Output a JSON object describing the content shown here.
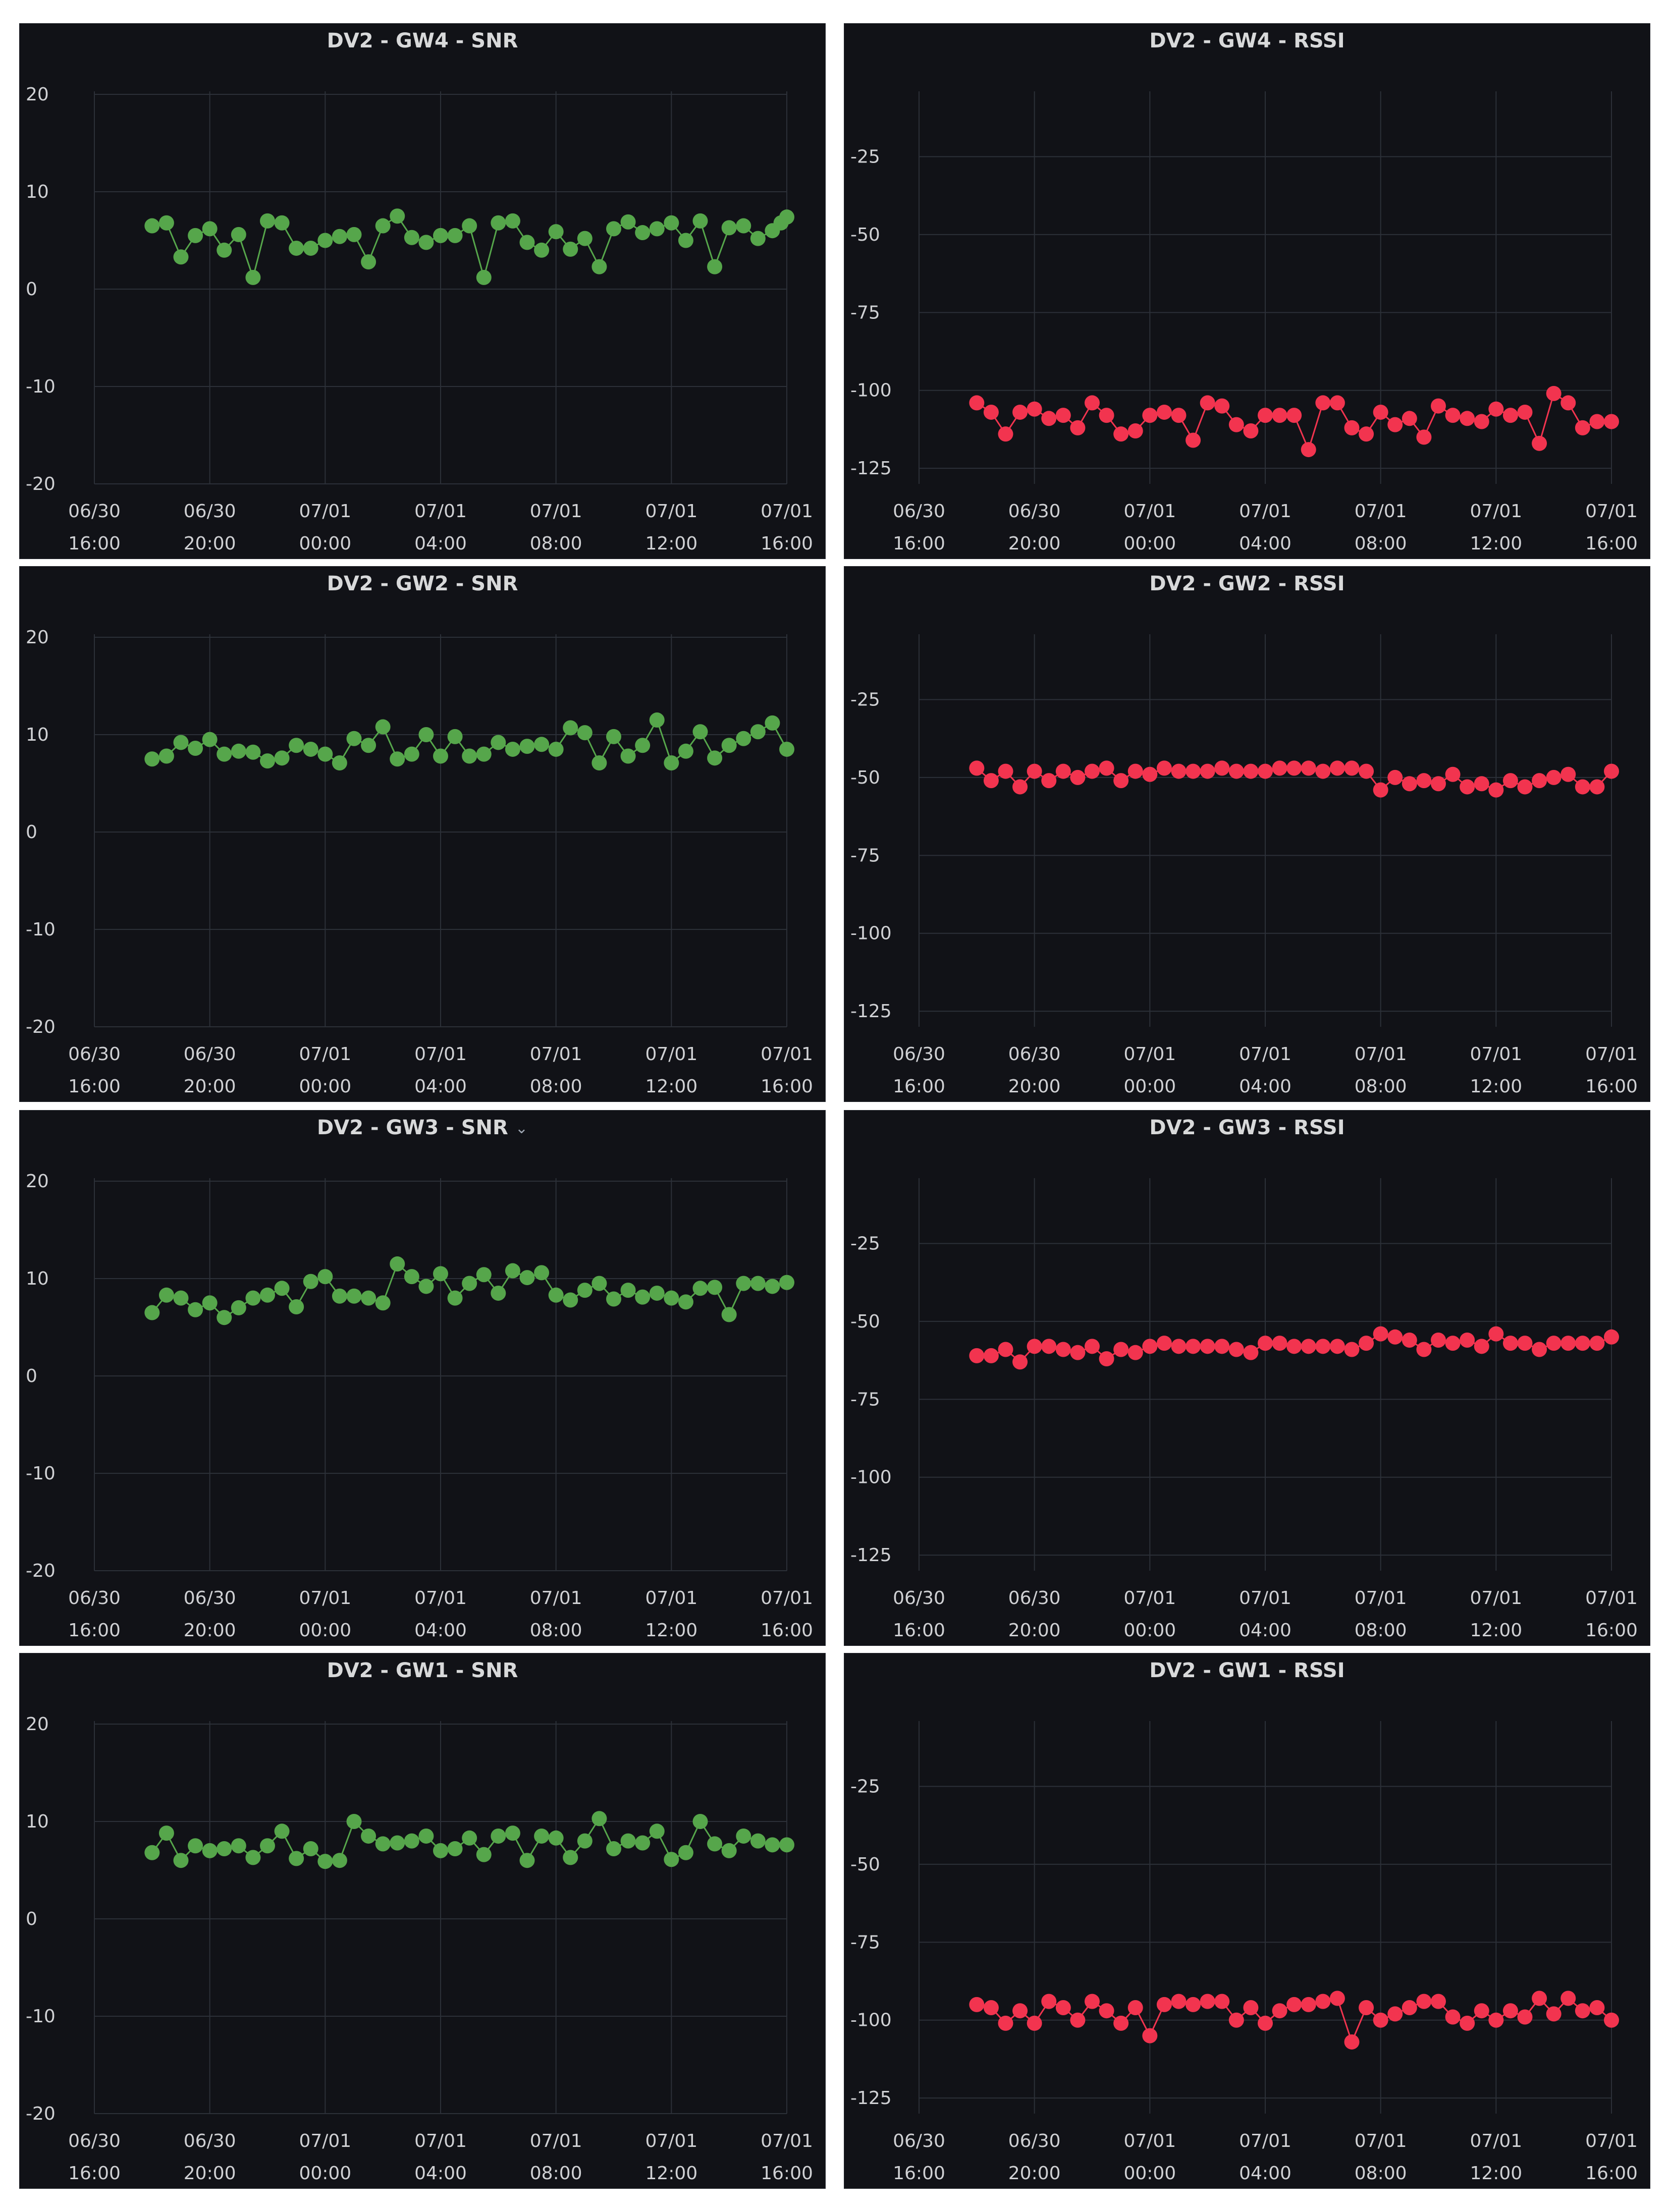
{
  "dashboard": {
    "panels": [
      {
        "title": "DV2 - GW4 - SNR",
        "has_menu_caret": false
      },
      {
        "title": "DV2 - GW4 - RSSI",
        "has_menu_caret": false
      },
      {
        "title": "DV2 - GW2 - SNR",
        "has_menu_caret": false
      },
      {
        "title": "DV2 - GW2 - RSSI",
        "has_menu_caret": false
      },
      {
        "title": "DV2 - GW3 - SNR",
        "has_menu_caret": true
      },
      {
        "title": "DV2 - GW3 - RSSI",
        "has_menu_caret": false
      },
      {
        "title": "DV2 - GW1 - SNR",
        "has_menu_caret": false
      },
      {
        "title": "DV2 - GW1 - RSSI",
        "has_menu_caret": false
      }
    ],
    "menu_caret_icon": "chevron-down-icon",
    "colors": {
      "snr": "#56a64b",
      "rssi": "#f2344f",
      "panel_bg": "#111217",
      "grid": "#2c3038",
      "text": "#d8d9da"
    }
  },
  "chart_data": [
    {
      "type": "line",
      "title": "DV2 - GW4 - SNR",
      "color": "#56a64b",
      "xlim": [
        0,
        24
      ],
      "ylim": [
        -20,
        20
      ],
      "yticks": [
        "20",
        "10",
        "0",
        "-10",
        "-20"
      ],
      "xticks": [
        {
          "d": "06/30",
          "t": "16:00"
        },
        {
          "d": "06/30",
          "t": "20:00"
        },
        {
          "d": "07/01",
          "t": "00:00"
        },
        {
          "d": "07/01",
          "t": "04:00"
        },
        {
          "d": "07/01",
          "t": "08:00"
        },
        {
          "d": "07/01",
          "t": "12:00"
        },
        {
          "d": "07/01",
          "t": "16:00"
        }
      ],
      "x": [
        2.0,
        2.5,
        3.0,
        3.5,
        4.0,
        4.5,
        5.0,
        5.5,
        6.0,
        6.5,
        7.0,
        7.5,
        8.0,
        8.5,
        9.0,
        9.5,
        10.0,
        10.5,
        11.0,
        11.5,
        12.0,
        12.5,
        13.0,
        13.5,
        14.0,
        14.5,
        15.0,
        15.5,
        16.0,
        16.5,
        17.0,
        17.5,
        18.0,
        18.5,
        19.0,
        19.5,
        20.0,
        20.5,
        21.0,
        21.5,
        22.0,
        22.5,
        23.0,
        23.5,
        23.8,
        24.0
      ],
      "y": [
        6.5,
        6.8,
        3.3,
        5.5,
        6.2,
        4.0,
        5.6,
        1.2,
        7.0,
        6.8,
        4.2,
        4.2,
        5.0,
        5.4,
        5.6,
        2.8,
        6.5,
        7.5,
        5.3,
        4.8,
        5.5,
        5.5,
        6.5,
        1.2,
        6.8,
        7.0,
        4.8,
        4.0,
        5.9,
        4.1,
        5.2,
        2.3,
        6.2,
        6.9,
        5.8,
        6.2,
        6.8,
        5.0,
        7.0,
        2.3,
        6.3,
        6.5,
        5.2,
        6.0,
        6.8,
        7.4
      ]
    },
    {
      "type": "line",
      "title": "DV2 - GW4 - RSSI",
      "color": "#f2344f",
      "xlim": [
        0,
        24
      ],
      "ylim": [
        -130,
        -5
      ],
      "yticks": [
        "-25",
        "-50",
        "-75",
        "-100",
        "-125"
      ],
      "xticks": [
        {
          "d": "06/30",
          "t": "16:00"
        },
        {
          "d": "06/30",
          "t": "20:00"
        },
        {
          "d": "07/01",
          "t": "00:00"
        },
        {
          "d": "07/01",
          "t": "04:00"
        },
        {
          "d": "07/01",
          "t": "08:00"
        },
        {
          "d": "07/01",
          "t": "12:00"
        },
        {
          "d": "07/01",
          "t": "16:00"
        }
      ],
      "x": [
        2.0,
        2.5,
        3.0,
        3.5,
        4.0,
        4.5,
        5.0,
        5.5,
        6.0,
        6.5,
        7.0,
        7.5,
        8.0,
        8.5,
        9.0,
        9.5,
        10.0,
        10.5,
        11.0,
        11.5,
        12.0,
        12.5,
        13.0,
        13.5,
        14.0,
        14.5,
        15.0,
        15.5,
        16.0,
        16.5,
        17.0,
        17.5,
        18.0,
        18.5,
        19.0,
        19.5,
        20.0,
        20.5,
        21.0,
        21.5,
        22.0,
        22.5,
        23.0,
        23.5,
        24.0
      ],
      "y": [
        -104,
        -107,
        -114,
        -107,
        -106,
        -109,
        -108,
        -112,
        -104,
        -108,
        -114,
        -113,
        -108,
        -107,
        -108,
        -116,
        -104,
        -105,
        -111,
        -113,
        -108,
        -108,
        -108,
        -119,
        -104,
        -104,
        -112,
        -114,
        -107,
        -111,
        -109,
        -115,
        -105,
        -108,
        -109,
        -110,
        -106,
        -108,
        -107,
        -117,
        -101,
        -104,
        -112,
        -110,
        -110
      ]
    },
    {
      "type": "line",
      "title": "DV2 - GW2 - SNR",
      "color": "#56a64b",
      "xlim": [
        0,
        24
      ],
      "ylim": [
        -20,
        20
      ],
      "yticks": [
        "20",
        "10",
        "0",
        "-10",
        "-20"
      ],
      "xticks": [
        {
          "d": "06/30",
          "t": "16:00"
        },
        {
          "d": "06/30",
          "t": "20:00"
        },
        {
          "d": "07/01",
          "t": "00:00"
        },
        {
          "d": "07/01",
          "t": "04:00"
        },
        {
          "d": "07/01",
          "t": "08:00"
        },
        {
          "d": "07/01",
          "t": "12:00"
        },
        {
          "d": "07/01",
          "t": "16:00"
        }
      ],
      "x": [
        2.0,
        2.5,
        3.0,
        3.5,
        4.0,
        4.5,
        5.0,
        5.5,
        6.0,
        6.5,
        7.0,
        7.5,
        8.0,
        8.5,
        9.0,
        9.5,
        10.0,
        10.5,
        11.0,
        11.5,
        12.0,
        12.5,
        13.0,
        13.5,
        14.0,
        14.5,
        15.0,
        15.5,
        16.0,
        16.5,
        17.0,
        17.5,
        18.0,
        18.5,
        19.0,
        19.5,
        20.0,
        20.5,
        21.0,
        21.5,
        22.0,
        22.5,
        23.0,
        23.5,
        24.0
      ],
      "y": [
        7.5,
        7.8,
        9.2,
        8.6,
        9.5,
        8.0,
        8.3,
        8.2,
        7.3,
        7.6,
        8.9,
        8.5,
        8.0,
        7.1,
        9.6,
        8.9,
        10.8,
        7.5,
        8.0,
        10.0,
        7.8,
        9.8,
        7.8,
        8.0,
        9.2,
        8.5,
        8.8,
        9.0,
        8.5,
        10.7,
        10.2,
        7.1,
        9.8,
        7.8,
        8.9,
        11.5,
        7.1,
        8.3,
        10.3,
        7.6,
        8.9,
        9.6,
        10.3,
        11.2,
        8.5
      ]
    },
    {
      "type": "line",
      "title": "DV2 - GW2 - RSSI",
      "color": "#f2344f",
      "xlim": [
        0,
        24
      ],
      "ylim": [
        -130,
        -5
      ],
      "yticks": [
        "-25",
        "-50",
        "-75",
        "-100",
        "-125"
      ],
      "xticks": [
        {
          "d": "06/30",
          "t": "16:00"
        },
        {
          "d": "06/30",
          "t": "20:00"
        },
        {
          "d": "07/01",
          "t": "00:00"
        },
        {
          "d": "07/01",
          "t": "04:00"
        },
        {
          "d": "07/01",
          "t": "08:00"
        },
        {
          "d": "07/01",
          "t": "12:00"
        },
        {
          "d": "07/01",
          "t": "16:00"
        }
      ],
      "x": [
        2.0,
        2.5,
        3.0,
        3.5,
        4.0,
        4.5,
        5.0,
        5.5,
        6.0,
        6.5,
        7.0,
        7.5,
        8.0,
        8.5,
        9.0,
        9.5,
        10.0,
        10.5,
        11.0,
        11.5,
        12.0,
        12.5,
        13.0,
        13.5,
        14.0,
        14.5,
        15.0,
        15.5,
        16.0,
        16.5,
        17.0,
        17.5,
        18.0,
        18.5,
        19.0,
        19.5,
        20.0,
        20.5,
        21.0,
        21.5,
        22.0,
        22.5,
        23.0,
        23.5,
        24.0
      ],
      "y": [
        -47,
        -51,
        -48,
        -53,
        -48,
        -51,
        -48,
        -50,
        -48,
        -47,
        -51,
        -48,
        -49,
        -47,
        -48,
        -48,
        -48,
        -47,
        -48,
        -48,
        -48,
        -47,
        -47,
        -47,
        -48,
        -47,
        -47,
        -48,
        -54,
        -50,
        -52,
        -51,
        -52,
        -49,
        -53,
        -52,
        -54,
        -51,
        -53,
        -51,
        -50,
        -49,
        -53,
        -53,
        -48
      ]
    },
    {
      "type": "line",
      "title": "DV2 - GW3 - SNR",
      "color": "#56a64b",
      "xlim": [
        0,
        24
      ],
      "ylim": [
        -20,
        20
      ],
      "yticks": [
        "20",
        "10",
        "0",
        "-10",
        "-20"
      ],
      "xticks": [
        {
          "d": "06/30",
          "t": "16:00"
        },
        {
          "d": "06/30",
          "t": "20:00"
        },
        {
          "d": "07/01",
          "t": "00:00"
        },
        {
          "d": "07/01",
          "t": "04:00"
        },
        {
          "d": "07/01",
          "t": "08:00"
        },
        {
          "d": "07/01",
          "t": "12:00"
        },
        {
          "d": "07/01",
          "t": "16:00"
        }
      ],
      "x": [
        2.0,
        2.5,
        3.0,
        3.5,
        4.0,
        4.5,
        5.0,
        5.5,
        6.0,
        6.5,
        7.0,
        7.5,
        8.0,
        8.5,
        9.0,
        9.5,
        10.0,
        10.5,
        11.0,
        11.5,
        12.0,
        12.5,
        13.0,
        13.5,
        14.0,
        14.5,
        15.0,
        15.5,
        16.0,
        16.5,
        17.0,
        17.5,
        18.0,
        18.5,
        19.0,
        19.5,
        20.0,
        20.5,
        21.0,
        21.5,
        22.0,
        22.5,
        23.0,
        23.5,
        24.0
      ],
      "y": [
        6.5,
        8.3,
        8.0,
        6.8,
        7.5,
        6.0,
        7.0,
        8.0,
        8.3,
        9.0,
        7.1,
        9.7,
        10.2,
        8.2,
        8.2,
        8.0,
        7.5,
        11.5,
        10.2,
        9.2,
        10.5,
        8.0,
        9.5,
        10.4,
        8.5,
        10.8,
        10.1,
        10.6,
        8.3,
        7.8,
        8.8,
        9.5,
        7.9,
        8.8,
        8.1,
        8.5,
        8.0,
        7.6,
        9.0,
        9.1,
        6.3,
        9.5,
        9.5,
        9.2,
        9.6
      ]
    },
    {
      "type": "line",
      "title": "DV2 - GW3 - RSSI",
      "color": "#f2344f",
      "xlim": [
        0,
        24
      ],
      "ylim": [
        -130,
        -5
      ],
      "yticks": [
        "-25",
        "-50",
        "-75",
        "-100",
        "-125"
      ],
      "xticks": [
        {
          "d": "06/30",
          "t": "16:00"
        },
        {
          "d": "06/30",
          "t": "20:00"
        },
        {
          "d": "07/01",
          "t": "00:00"
        },
        {
          "d": "07/01",
          "t": "04:00"
        },
        {
          "d": "07/01",
          "t": "08:00"
        },
        {
          "d": "07/01",
          "t": "12:00"
        },
        {
          "d": "07/01",
          "t": "16:00"
        }
      ],
      "x": [
        2.0,
        2.5,
        3.0,
        3.5,
        4.0,
        4.5,
        5.0,
        5.5,
        6.0,
        6.5,
        7.0,
        7.5,
        8.0,
        8.5,
        9.0,
        9.5,
        10.0,
        10.5,
        11.0,
        11.5,
        12.0,
        12.5,
        13.0,
        13.5,
        14.0,
        14.5,
        15.0,
        15.5,
        16.0,
        16.5,
        17.0,
        17.5,
        18.0,
        18.5,
        19.0,
        19.5,
        20.0,
        20.5,
        21.0,
        21.5,
        22.0,
        22.5,
        23.0,
        23.5,
        24.0
      ],
      "y": [
        -61,
        -61,
        -59,
        -63,
        -58,
        -58,
        -59,
        -60,
        -58,
        -62,
        -59,
        -60,
        -58,
        -57,
        -58,
        -58,
        -58,
        -58,
        -59,
        -60,
        -57,
        -57,
        -58,
        -58,
        -58,
        -58,
        -59,
        -57,
        -54,
        -55,
        -56,
        -59,
        -56,
        -57,
        -56,
        -58,
        -54,
        -57,
        -57,
        -59,
        -57,
        -57,
        -57,
        -57,
        -55
      ]
    },
    {
      "type": "line",
      "title": "DV2 - GW1 - SNR",
      "color": "#56a64b",
      "xlim": [
        0,
        24
      ],
      "ylim": [
        -20,
        20
      ],
      "yticks": [
        "20",
        "10",
        "0",
        "-10",
        "-20"
      ],
      "xticks": [
        {
          "d": "06/30",
          "t": "16:00"
        },
        {
          "d": "06/30",
          "t": "20:00"
        },
        {
          "d": "07/01",
          "t": "00:00"
        },
        {
          "d": "07/01",
          "t": "04:00"
        },
        {
          "d": "07/01",
          "t": "08:00"
        },
        {
          "d": "07/01",
          "t": "12:00"
        },
        {
          "d": "07/01",
          "t": "16:00"
        }
      ],
      "x": [
        2.0,
        2.5,
        3.0,
        3.5,
        4.0,
        4.5,
        5.0,
        5.5,
        6.0,
        6.5,
        7.0,
        7.5,
        8.0,
        8.5,
        9.0,
        9.5,
        10.0,
        10.5,
        11.0,
        11.5,
        12.0,
        12.5,
        13.0,
        13.5,
        14.0,
        14.5,
        15.0,
        15.5,
        16.0,
        16.5,
        17.0,
        17.5,
        18.0,
        18.5,
        19.0,
        19.5,
        20.0,
        20.5,
        21.0,
        21.5,
        22.0,
        22.5,
        23.0,
        23.5,
        24.0
      ],
      "y": [
        6.8,
        8.8,
        6.0,
        7.5,
        7.0,
        7.2,
        7.5,
        6.3,
        7.5,
        9.0,
        6.2,
        7.2,
        5.9,
        6.0,
        10.0,
        8.5,
        7.7,
        7.8,
        8.0,
        8.5,
        7.0,
        7.2,
        8.3,
        6.6,
        8.5,
        8.8,
        6.0,
        8.5,
        8.3,
        6.3,
        8.0,
        10.3,
        7.2,
        8.0,
        7.8,
        9.0,
        6.1,
        6.8,
        10.0,
        7.7,
        7.0,
        8.5,
        8.0,
        7.6,
        7.6
      ]
    },
    {
      "type": "line",
      "title": "DV2 - GW1 - RSSI",
      "color": "#f2344f",
      "xlim": [
        0,
        24
      ],
      "ylim": [
        -130,
        -5
      ],
      "yticks": [
        "-25",
        "-50",
        "-75",
        "-100",
        "-125"
      ],
      "xticks": [
        {
          "d": "06/30",
          "t": "16:00"
        },
        {
          "d": "06/30",
          "t": "20:00"
        },
        {
          "d": "07/01",
          "t": "00:00"
        },
        {
          "d": "07/01",
          "t": "04:00"
        },
        {
          "d": "07/01",
          "t": "08:00"
        },
        {
          "d": "07/01",
          "t": "12:00"
        },
        {
          "d": "07/01",
          "t": "16:00"
        }
      ],
      "x": [
        2.0,
        2.5,
        3.0,
        3.5,
        4.0,
        4.5,
        5.0,
        5.5,
        6.0,
        6.5,
        7.0,
        7.5,
        8.0,
        8.5,
        9.0,
        9.5,
        10.0,
        10.5,
        11.0,
        11.5,
        12.0,
        12.5,
        13.0,
        13.5,
        14.0,
        14.5,
        15.0,
        15.5,
        16.0,
        16.5,
        17.0,
        17.5,
        18.0,
        18.5,
        19.0,
        19.5,
        20.0,
        20.5,
        21.0,
        21.5,
        22.0,
        22.5,
        23.0,
        23.5,
        24.0
      ],
      "y": [
        -95,
        -96,
        -101,
        -97,
        -101,
        -94,
        -96,
        -100,
        -94,
        -97,
        -101,
        -96,
        -105,
        -95,
        -94,
        -95,
        -94,
        -94,
        -100,
        -96,
        -101,
        -97,
        -95,
        -95,
        -94,
        -93,
        -107,
        -96,
        -100,
        -98,
        -96,
        -94,
        -94,
        -99,
        -101,
        -97,
        -100,
        -97,
        -99,
        -93,
        -98,
        -93,
        -97,
        -96,
        -100
      ]
    }
  ]
}
